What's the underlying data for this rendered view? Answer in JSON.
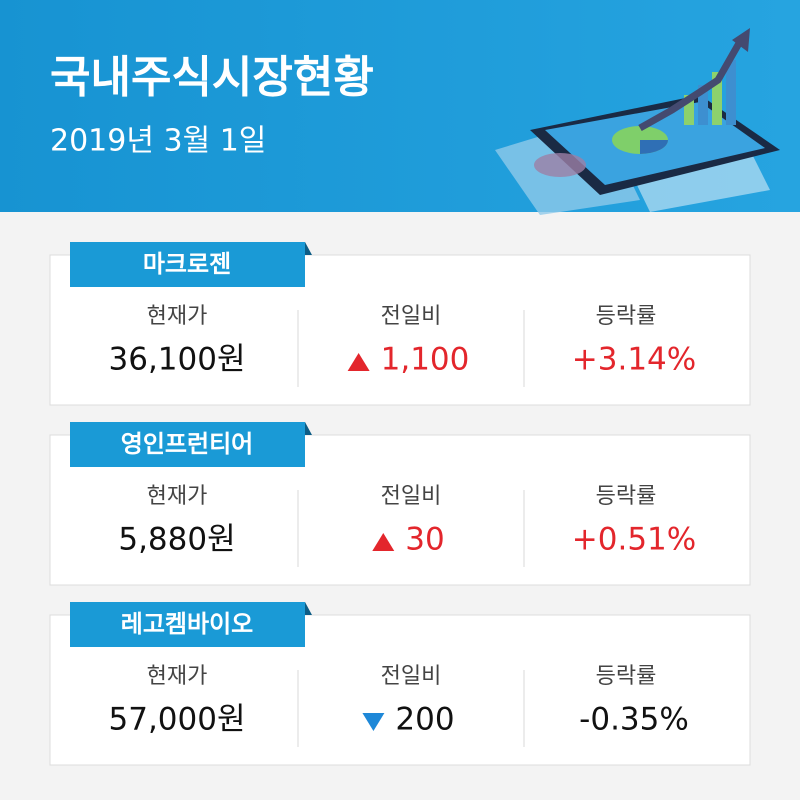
{
  "header": {
    "title": "국내주식시장현황",
    "date": "2019년 3월 1일"
  },
  "columns": [
    "현재가",
    "전일비",
    "등락률"
  ],
  "stocks": [
    {
      "name": "마크로젠",
      "price": "36,100원",
      "change": "1,100",
      "direction": "up",
      "rate": "+3.14%"
    },
    {
      "name": "영인프런티어",
      "price": "5,880원",
      "change": "30",
      "direction": "up",
      "rate": "+0.51%"
    },
    {
      "name": "레고켐바이오",
      "price": "57,000원",
      "change": "200",
      "direction": "down",
      "rate": "-0.35%"
    }
  ]
}
